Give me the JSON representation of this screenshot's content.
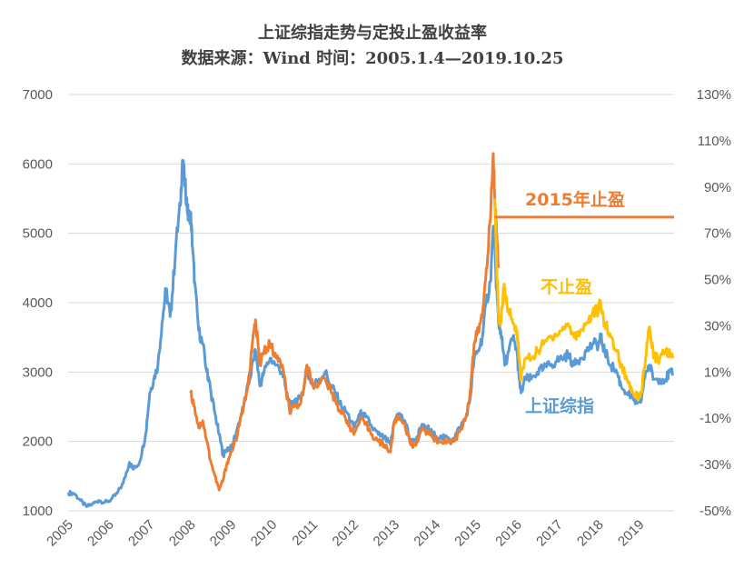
{
  "chart_data": {
    "type": "line",
    "title": "上证综指走势与定投止盈收益率",
    "subtitle": "数据来源：Wind 时间：2005.1.4—2019.10.25",
    "x_ticks": [
      "2005",
      "2006",
      "2007",
      "2008",
      "2009",
      "2010",
      "2011",
      "2012",
      "2013",
      "2014",
      "2015",
      "2016",
      "2017",
      "2018",
      "2019"
    ],
    "y_left": {
      "ticks": [
        "7000",
        "6000",
        "5000",
        "4000",
        "3000",
        "2000",
        "1000"
      ],
      "range": [
        1000,
        7000
      ]
    },
    "y_right": {
      "ticks": [
        "130%",
        "110%",
        "90%",
        "70%",
        "50%",
        "30%",
        "10%",
        "-10%",
        "-30%",
        "-50%"
      ],
      "range": [
        -50,
        130
      ]
    },
    "grid": true,
    "series": [
      {
        "name": "上证综指",
        "axis": "left",
        "color": "#5B9BD5",
        "points": [
          [
            2005.0,
            1260
          ],
          [
            2005.15,
            1250
          ],
          [
            2005.3,
            1150
          ],
          [
            2005.45,
            1060
          ],
          [
            2005.6,
            1100
          ],
          [
            2005.75,
            1150
          ],
          [
            2005.9,
            1120
          ],
          [
            2006.05,
            1160
          ],
          [
            2006.2,
            1250
          ],
          [
            2006.35,
            1400
          ],
          [
            2006.5,
            1700
          ],
          [
            2006.6,
            1600
          ],
          [
            2006.75,
            1700
          ],
          [
            2006.9,
            2100
          ],
          [
            2007.0,
            2700
          ],
          [
            2007.1,
            2900
          ],
          [
            2007.2,
            3100
          ],
          [
            2007.3,
            3700
          ],
          [
            2007.4,
            4200
          ],
          [
            2007.5,
            3800
          ],
          [
            2007.55,
            4100
          ],
          [
            2007.65,
            4900
          ],
          [
            2007.75,
            5400
          ],
          [
            2007.8,
            6050
          ],
          [
            2007.85,
            5800
          ],
          [
            2007.9,
            5500
          ],
          [
            2007.95,
            5200
          ],
          [
            2008.0,
            5300
          ],
          [
            2008.05,
            4800
          ],
          [
            2008.1,
            4300
          ],
          [
            2008.2,
            3600
          ],
          [
            2008.3,
            3400
          ],
          [
            2008.4,
            3000
          ],
          [
            2008.45,
            2900
          ],
          [
            2008.5,
            2700
          ],
          [
            2008.6,
            2400
          ],
          [
            2008.7,
            2100
          ],
          [
            2008.8,
            1800
          ],
          [
            2008.9,
            1900
          ],
          [
            2009.0,
            1900
          ],
          [
            2009.15,
            2200
          ],
          [
            2009.3,
            2500
          ],
          [
            2009.45,
            2900
          ],
          [
            2009.55,
            3200
          ],
          [
            2009.6,
            3300
          ],
          [
            2009.7,
            2800
          ],
          [
            2009.8,
            3000
          ],
          [
            2009.95,
            3200
          ],
          [
            2010.1,
            3100
          ],
          [
            2010.25,
            3000
          ],
          [
            2010.35,
            2700
          ],
          [
            2010.45,
            2500
          ],
          [
            2010.55,
            2600
          ],
          [
            2010.7,
            2600
          ],
          [
            2010.85,
            3000
          ],
          [
            2011.0,
            2800
          ],
          [
            2011.15,
            2900
          ],
          [
            2011.3,
            3000
          ],
          [
            2011.45,
            2800
          ],
          [
            2011.55,
            2700
          ],
          [
            2011.7,
            2500
          ],
          [
            2011.85,
            2400
          ],
          [
            2012.0,
            2200
          ],
          [
            2012.15,
            2400
          ],
          [
            2012.3,
            2350
          ],
          [
            2012.45,
            2200
          ],
          [
            2012.6,
            2100
          ],
          [
            2012.75,
            2050
          ],
          [
            2012.9,
            1950
          ],
          [
            2013.0,
            2300
          ],
          [
            2013.1,
            2400
          ],
          [
            2013.25,
            2300
          ],
          [
            2013.4,
            2000
          ],
          [
            2013.5,
            2000
          ],
          [
            2013.65,
            2200
          ],
          [
            2013.8,
            2200
          ],
          [
            2013.95,
            2100
          ],
          [
            2014.1,
            2050
          ],
          [
            2014.3,
            2050
          ],
          [
            2014.45,
            2050
          ],
          [
            2014.6,
            2200
          ],
          [
            2014.75,
            2350
          ],
          [
            2014.85,
            2600
          ],
          [
            2014.95,
            3200
          ],
          [
            2015.05,
            3300
          ],
          [
            2015.15,
            3500
          ],
          [
            2015.25,
            4000
          ],
          [
            2015.35,
            4300
          ],
          [
            2015.42,
            5100
          ],
          [
            2015.45,
            4800
          ],
          [
            2015.5,
            4200
          ],
          [
            2015.55,
            3700
          ],
          [
            2015.6,
            3600
          ],
          [
            2015.7,
            3100
          ],
          [
            2015.8,
            3300
          ],
          [
            2015.9,
            3500
          ],
          [
            2016.0,
            3300
          ],
          [
            2016.05,
            2900
          ],
          [
            2016.1,
            2700
          ],
          [
            2016.2,
            2900
          ],
          [
            2016.35,
            2900
          ],
          [
            2016.5,
            3000
          ],
          [
            2016.65,
            3050
          ],
          [
            2016.8,
            3100
          ],
          [
            2016.95,
            3150
          ],
          [
            2017.1,
            3200
          ],
          [
            2017.25,
            3250
          ],
          [
            2017.4,
            3100
          ],
          [
            2017.55,
            3200
          ],
          [
            2017.7,
            3300
          ],
          [
            2017.85,
            3400
          ],
          [
            2018.0,
            3400
          ],
          [
            2018.05,
            3500
          ],
          [
            2018.15,
            3300
          ],
          [
            2018.3,
            3100
          ],
          [
            2018.45,
            3000
          ],
          [
            2018.55,
            2800
          ],
          [
            2018.7,
            2700
          ],
          [
            2018.85,
            2600
          ],
          [
            2018.95,
            2550
          ],
          [
            2019.05,
            2600
          ],
          [
            2019.15,
            3000
          ],
          [
            2019.25,
            3100
          ],
          [
            2019.35,
            2900
          ],
          [
            2019.5,
            2900
          ],
          [
            2019.65,
            2900
          ],
          [
            2019.75,
            3000
          ],
          [
            2019.82,
            2950
          ]
        ]
      },
      {
        "name": "2015年止盈",
        "axis": "left",
        "color": "#ED7D31",
        "points": [
          [
            2008.0,
            2700
          ],
          [
            2008.1,
            2500
          ],
          [
            2008.2,
            2200
          ],
          [
            2008.3,
            2300
          ],
          [
            2008.4,
            2000
          ],
          [
            2008.5,
            1700
          ],
          [
            2008.6,
            1500
          ],
          [
            2008.7,
            1300
          ],
          [
            2008.8,
            1450
          ],
          [
            2008.9,
            1700
          ],
          [
            2009.0,
            1850
          ],
          [
            2009.15,
            2100
          ],
          [
            2009.3,
            2500
          ],
          [
            2009.45,
            3000
          ],
          [
            2009.55,
            3600
          ],
          [
            2009.6,
            3700
          ],
          [
            2009.7,
            3100
          ],
          [
            2009.8,
            3300
          ],
          [
            2009.95,
            3400
          ],
          [
            2010.1,
            3200
          ],
          [
            2010.25,
            3100
          ],
          [
            2010.35,
            2700
          ],
          [
            2010.45,
            2400
          ],
          [
            2010.55,
            2500
          ],
          [
            2010.7,
            2550
          ],
          [
            2010.85,
            3100
          ],
          [
            2011.0,
            2800
          ],
          [
            2011.15,
            2850
          ],
          [
            2011.3,
            2900
          ],
          [
            2011.45,
            2700
          ],
          [
            2011.55,
            2600
          ],
          [
            2011.7,
            2400
          ],
          [
            2011.85,
            2300
          ],
          [
            2012.0,
            2100
          ],
          [
            2012.15,
            2300
          ],
          [
            2012.3,
            2250
          ],
          [
            2012.45,
            2100
          ],
          [
            2012.6,
            2000
          ],
          [
            2012.75,
            1950
          ],
          [
            2012.9,
            1850
          ],
          [
            2013.0,
            2300
          ],
          [
            2013.1,
            2350
          ],
          [
            2013.25,
            2250
          ],
          [
            2013.4,
            1950
          ],
          [
            2013.5,
            1950
          ],
          [
            2013.65,
            2150
          ],
          [
            2013.8,
            2150
          ],
          [
            2013.95,
            2050
          ],
          [
            2014.1,
            2000
          ],
          [
            2014.3,
            2000
          ],
          [
            2014.45,
            2000
          ],
          [
            2014.6,
            2150
          ],
          [
            2014.75,
            2350
          ],
          [
            2014.85,
            2700
          ],
          [
            2014.95,
            3400
          ],
          [
            2015.05,
            3600
          ],
          [
            2015.15,
            3800
          ],
          [
            2015.25,
            4500
          ],
          [
            2015.35,
            5200
          ],
          [
            2015.42,
            6150
          ],
          [
            2015.45,
            5600
          ],
          [
            2015.5,
            5000
          ],
          [
            2015.55,
            4500
          ]
        ]
      },
      {
        "name": "不止盈",
        "axis": "left",
        "color": "#FFC000",
        "points": [
          [
            2015.45,
            5500
          ],
          [
            2015.5,
            4600
          ],
          [
            2015.55,
            3800
          ],
          [
            2015.6,
            3700
          ],
          [
            2015.68,
            4200
          ],
          [
            2015.72,
            4100
          ],
          [
            2015.8,
            3900
          ],
          [
            2015.9,
            3700
          ],
          [
            2016.0,
            3600
          ],
          [
            2016.05,
            3200
          ],
          [
            2016.1,
            2900
          ],
          [
            2016.2,
            3200
          ],
          [
            2016.35,
            3200
          ],
          [
            2016.5,
            3300
          ],
          [
            2016.65,
            3400
          ],
          [
            2016.8,
            3500
          ],
          [
            2016.95,
            3550
          ],
          [
            2017.1,
            3600
          ],
          [
            2017.25,
            3700
          ],
          [
            2017.4,
            3500
          ],
          [
            2017.55,
            3600
          ],
          [
            2017.7,
            3700
          ],
          [
            2017.85,
            3850
          ],
          [
            2018.0,
            3900
          ],
          [
            2018.05,
            4000
          ],
          [
            2018.15,
            3700
          ],
          [
            2018.3,
            3500
          ],
          [
            2018.45,
            3300
          ],
          [
            2018.55,
            3100
          ],
          [
            2018.7,
            2900
          ],
          [
            2018.85,
            2700
          ],
          [
            2018.95,
            2650
          ],
          [
            2019.05,
            2700
          ],
          [
            2019.15,
            3200
          ],
          [
            2019.25,
            3650
          ],
          [
            2019.35,
            3200
          ],
          [
            2019.5,
            3200
          ],
          [
            2019.65,
            3300
          ],
          [
            2019.75,
            3250
          ],
          [
            2019.82,
            3200
          ]
        ]
      }
    ],
    "reference_line": {
      "label": "2015年止盈",
      "value_right_axis": 77,
      "from_x": 2015.45,
      "color": "#ED7D31"
    },
    "annotations": [
      {
        "text": "2015年止盈",
        "color": "#ED7D31"
      },
      {
        "text": "不止盈",
        "color": "#FFC000"
      },
      {
        "text": "上证综指",
        "color": "#5B9BD5"
      }
    ]
  }
}
